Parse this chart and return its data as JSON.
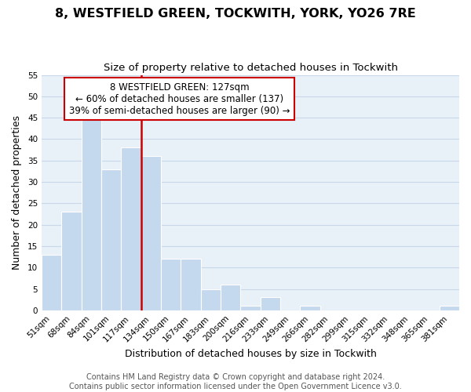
{
  "title": "8, WESTFIELD GREEN, TOCKWITH, YORK, YO26 7RE",
  "subtitle": "Size of property relative to detached houses in Tockwith",
  "xlabel": "Distribution of detached houses by size in Tockwith",
  "ylabel": "Number of detached properties",
  "footer_line1": "Contains HM Land Registry data © Crown copyright and database right 2024.",
  "footer_line2": "Contains public sector information licensed under the Open Government Licence v3.0.",
  "bin_labels": [
    "51sqm",
    "68sqm",
    "84sqm",
    "101sqm",
    "117sqm",
    "134sqm",
    "150sqm",
    "167sqm",
    "183sqm",
    "200sqm",
    "216sqm",
    "233sqm",
    "249sqm",
    "266sqm",
    "282sqm",
    "299sqm",
    "315sqm",
    "332sqm",
    "348sqm",
    "365sqm",
    "381sqm"
  ],
  "bar_values": [
    13,
    23,
    45,
    33,
    38,
    36,
    12,
    12,
    5,
    6,
    1,
    3,
    0,
    1,
    0,
    0,
    0,
    0,
    0,
    0,
    1
  ],
  "bar_color": "#c5d9ee",
  "bar_edge_color": "#ffffff",
  "grid_color": "#c8d8e8",
  "bg_color": "#e8f0f8",
  "ylim": [
    0,
    55
  ],
  "yticks": [
    0,
    5,
    10,
    15,
    20,
    25,
    30,
    35,
    40,
    45,
    50,
    55
  ],
  "property_line_x": 4.5,
  "property_line_color": "#cc0000",
  "annotation_text_line1": "8 WESTFIELD GREEN: 127sqm",
  "annotation_text_line2": "← 60% of detached houses are smaller (137)",
  "annotation_text_line3": "39% of semi-detached houses are larger (90) →",
  "title_fontsize": 11.5,
  "subtitle_fontsize": 9.5,
  "xlabel_fontsize": 9,
  "ylabel_fontsize": 9,
  "tick_fontsize": 7.5,
  "annotation_fontsize": 8.5,
  "footer_fontsize": 7
}
